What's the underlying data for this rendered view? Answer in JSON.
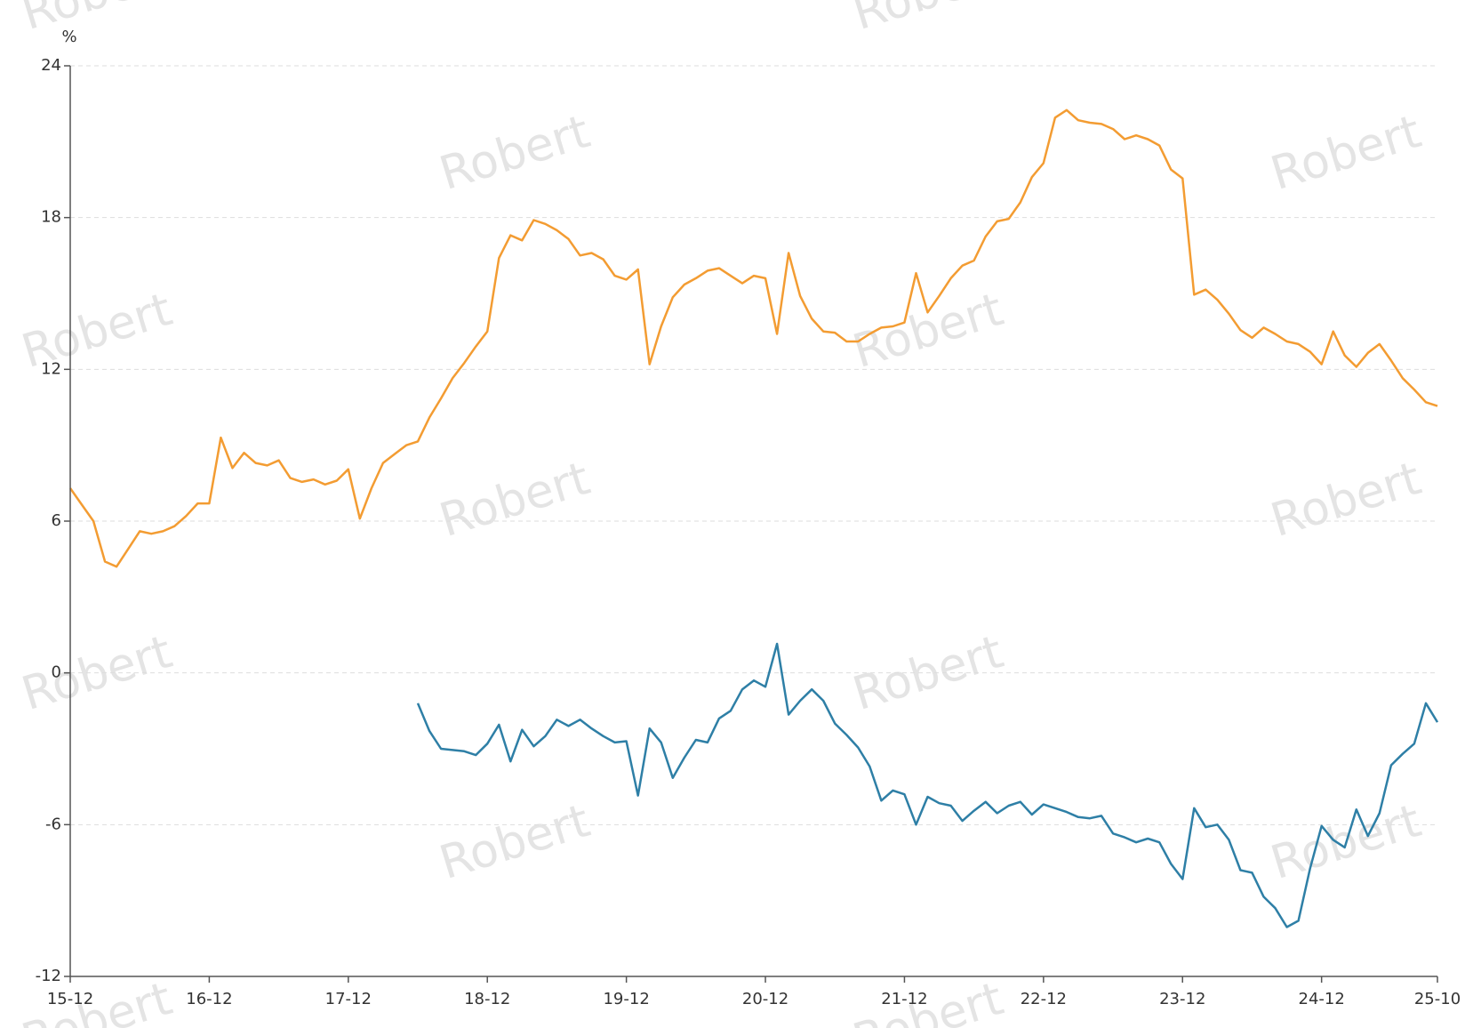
{
  "chart_data": {
    "type": "line",
    "y_label": "%",
    "watermark": "Robert",
    "categories": [
      "15-12",
      "16-01",
      "16-02",
      "16-03",
      "16-04",
      "16-05",
      "16-06",
      "16-07",
      "16-08",
      "16-09",
      "16-10",
      "16-11",
      "16-12",
      "17-01",
      "17-02",
      "17-03",
      "17-04",
      "17-05",
      "17-06",
      "17-07",
      "17-08",
      "17-09",
      "17-10",
      "17-11",
      "17-12",
      "18-01",
      "18-02",
      "18-03",
      "18-04",
      "18-05",
      "18-06",
      "18-07",
      "18-08",
      "18-09",
      "18-10",
      "18-11",
      "18-12",
      "19-01",
      "19-02",
      "19-03",
      "19-04",
      "19-05",
      "19-06",
      "19-07",
      "19-08",
      "19-09",
      "19-10",
      "19-11",
      "19-12",
      "20-01",
      "20-02",
      "20-03",
      "20-04",
      "20-05",
      "20-06",
      "20-07",
      "20-08",
      "20-09",
      "20-10",
      "20-11",
      "20-12",
      "21-01",
      "21-02",
      "21-03",
      "21-04",
      "21-05",
      "21-06",
      "21-07",
      "21-08",
      "21-09",
      "21-10",
      "21-11",
      "21-12",
      "22-01",
      "22-02",
      "22-03",
      "22-04",
      "22-05",
      "22-06",
      "22-07",
      "22-08",
      "22-09",
      "22-10",
      "22-11",
      "22-12",
      "23-01",
      "23-02",
      "23-03",
      "23-04",
      "23-05",
      "23-06",
      "23-07",
      "23-08",
      "23-09",
      "23-10",
      "23-11",
      "23-12",
      "24-01",
      "24-02",
      "24-03",
      "24-04",
      "24-05",
      "24-06",
      "24-07",
      "24-08",
      "24-09",
      "24-10",
      "24-11",
      "24-12",
      "25-01",
      "25-02",
      "25-03",
      "25-04",
      "25-05",
      "25-06",
      "25-07",
      "25-08",
      "25-09",
      "25-10"
    ],
    "xticks": [
      "15-12",
      "16-12",
      "17-12",
      "18-12",
      "19-12",
      "20-12",
      "21-12",
      "22-12",
      "23-12",
      "24-12",
      "25-10"
    ],
    "series": [
      {
        "color": "#f39c32",
        "values": [
          7.3,
          6.65,
          6.0,
          4.4,
          4.2,
          4.9,
          5.6,
          5.5,
          5.6,
          5.8,
          6.2,
          6.7,
          6.7,
          9.3,
          8.1,
          8.7,
          8.3,
          8.2,
          8.4,
          7.7,
          7.55,
          7.65,
          7.45,
          7.6,
          8.05,
          6.1,
          7.3,
          8.3,
          8.65,
          9.0,
          9.15,
          10.1,
          10.85,
          11.65,
          12.25,
          12.9,
          13.5,
          16.4,
          17.3,
          17.1,
          17.9,
          17.75,
          17.5,
          17.15,
          16.5,
          16.6,
          16.35,
          15.7,
          15.55,
          15.95,
          12.2,
          13.7,
          14.85,
          15.35,
          15.6,
          15.9,
          16.0,
          15.7,
          15.4,
          15.7,
          15.6,
          13.4,
          16.6,
          14.9,
          14.0,
          13.5,
          13.45,
          13.1,
          13.1,
          13.4,
          13.65,
          13.7,
          13.85,
          15.8,
          14.25,
          14.9,
          15.6,
          16.1,
          16.3,
          17.25,
          17.85,
          17.95,
          18.6,
          19.6,
          20.15,
          21.95,
          22.25,
          21.85,
          21.75,
          21.7,
          21.5,
          21.1,
          21.25,
          21.1,
          20.85,
          19.9,
          19.55,
          14.95,
          15.15,
          14.75,
          14.2,
          13.55,
          13.25,
          13.65,
          13.4,
          13.1,
          13.0,
          12.7,
          12.2,
          13.5,
          12.55,
          12.1,
          12.65,
          13.0,
          12.35,
          11.65,
          11.2,
          10.7,
          10.55
        ]
      },
      {
        "color": "#2e7fa6",
        "values": [
          null,
          null,
          null,
          null,
          null,
          null,
          null,
          null,
          null,
          null,
          null,
          null,
          null,
          null,
          null,
          null,
          null,
          null,
          null,
          null,
          null,
          null,
          null,
          null,
          null,
          null,
          null,
          null,
          null,
          null,
          -1.2,
          -2.3,
          -3.0,
          -3.05,
          -3.1,
          -3.25,
          -2.8,
          -2.05,
          -3.5,
          -2.25,
          -2.9,
          -2.5,
          -1.85,
          -2.1,
          -1.85,
          -2.2,
          -2.5,
          -2.75,
          -2.7,
          -4.85,
          -2.2,
          -2.75,
          -4.15,
          -3.35,
          -2.65,
          -2.75,
          -1.8,
          -1.5,
          -0.65,
          -0.3,
          -0.55,
          1.15,
          -1.65,
          -1.1,
          -0.65,
          -1.1,
          -2.0,
          -2.45,
          -2.95,
          -3.7,
          -5.05,
          -4.65,
          -4.8,
          -6.0,
          -4.9,
          -5.15,
          -5.25,
          -5.85,
          -5.45,
          -5.1,
          -5.55,
          -5.25,
          -5.1,
          -5.6,
          -5.2,
          -5.35,
          -5.5,
          -5.7,
          -5.75,
          -5.65,
          -6.35,
          -6.5,
          -6.7,
          -6.55,
          -6.7,
          -7.55,
          -8.15,
          -5.35,
          -6.1,
          -6.0,
          -6.6,
          -7.8,
          -7.9,
          -8.85,
          -9.3,
          -10.05,
          -9.8,
          -7.75,
          -6.05,
          -6.6,
          -6.9,
          -5.4,
          -6.45,
          -5.55,
          -3.65,
          -3.2,
          -2.8,
          -1.2,
          -1.95
        ]
      }
    ],
    "ylim": [
      -12,
      24
    ],
    "yticks": [
      -12,
      -6,
      0,
      6,
      12,
      18,
      24
    ],
    "grid": true
  }
}
